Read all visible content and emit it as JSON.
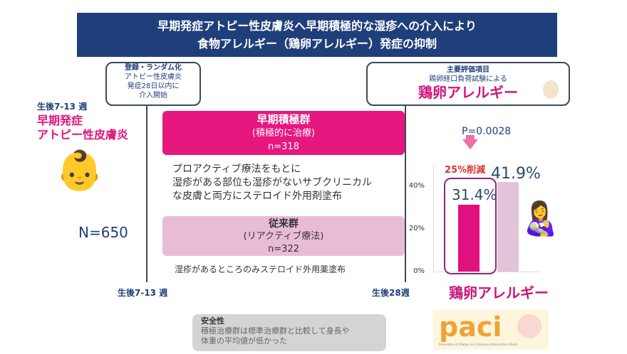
{
  "header": {
    "title_line1": "早期発症アトピー性皮膚炎へ早期積極的な湿疹への介入により",
    "title_line2": "食物アレルギー（鶏卵アレルギー）発症の抑制"
  },
  "randomization": {
    "line1": "登録・ランダム化",
    "line2": "アトピー性皮膚炎",
    "line3": "発症28日以内に",
    "line4": "介入開始"
  },
  "endpoint": {
    "line1": "主要評価項目",
    "line2": "鶏卵経口負荷試験による",
    "line3": "鶏卵アレルギー"
  },
  "left": {
    "age": "生後7-13 週",
    "label1": "早期発症",
    "label2": "アトピー性皮膚炎",
    "n": "N=650"
  },
  "groups": [
    {
      "title": "早期積極群",
      "subtitle": "(積極的に治療)",
      "n": "n=318",
      "desc1": "プロアクティブ療法をもとに",
      "desc2": "湿疹がある部位も湿疹がないサブクリニカル",
      "desc3": "な皮膚と両方にステロイド外用剤塗布"
    },
    {
      "title": "従来群",
      "subtitle": "(リアクティブ療法)",
      "n": "n=322",
      "desc1": "湿疹があるところのみステロイド外用薬塗布"
    }
  ],
  "timeline": {
    "start": "生後7-13 週",
    "end": "生後28週"
  },
  "chart_data": {
    "type": "bar",
    "categories": [
      "早期積極群",
      "従来群"
    ],
    "values": [
      31.4,
      41.9
    ],
    "value_labels": [
      "31.4%",
      "41.9%"
    ],
    "yticks": [
      "0%",
      "20%",
      "40%"
    ],
    "ylim": [
      0,
      50
    ],
    "xlabel": "鶏卵アレルギー",
    "p_value": "P=0.0028",
    "annotation": "25%削減",
    "colors": [
      "#e0107e",
      "#e3c3d7"
    ]
  },
  "safety": {
    "title": "安全性",
    "line1": "積極治療群は標準治療群と比較して身長や",
    "line2": "体重の平均値が低かった"
  },
  "logo": {
    "text": "paci",
    "subtitle": "Prevention of Allergy via Cutaneous Intervention Study"
  }
}
